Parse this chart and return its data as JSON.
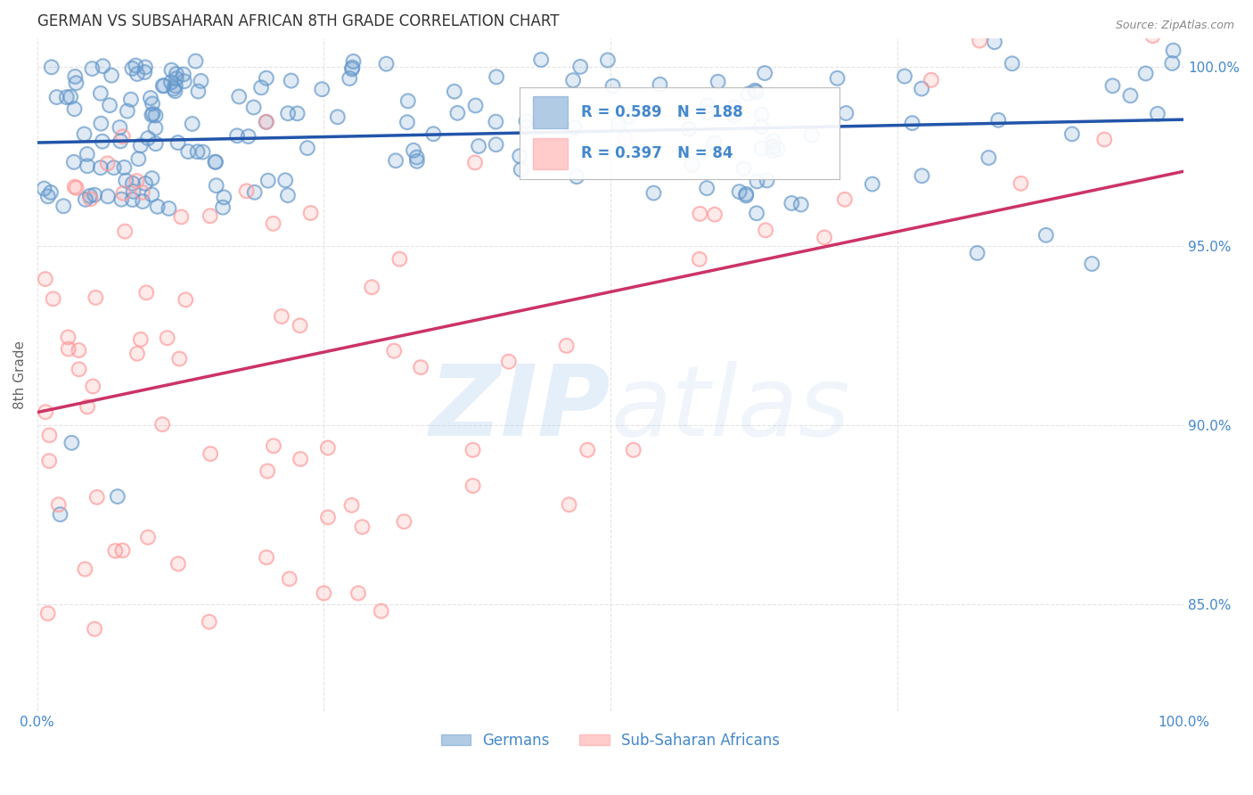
{
  "title": "GERMAN VS SUBSAHARAN AFRICAN 8TH GRADE CORRELATION CHART",
  "source": "Source: ZipAtlas.com",
  "ylabel": "8th Grade",
  "xlim": [
    0.0,
    1.0
  ],
  "ylim": [
    0.82,
    1.008
  ],
  "blue_R": 0.589,
  "blue_N": 188,
  "pink_R": 0.397,
  "pink_N": 84,
  "blue_color": "#6699CC",
  "pink_color": "#FF9999",
  "blue_line_color": "#2255AA",
  "pink_line_color": "#CC3366",
  "background_color": "#FFFFFF",
  "grid_color": "#DDDDDD",
  "axis_label_color": "#4488CC",
  "legend_text_color": "#4488CC"
}
